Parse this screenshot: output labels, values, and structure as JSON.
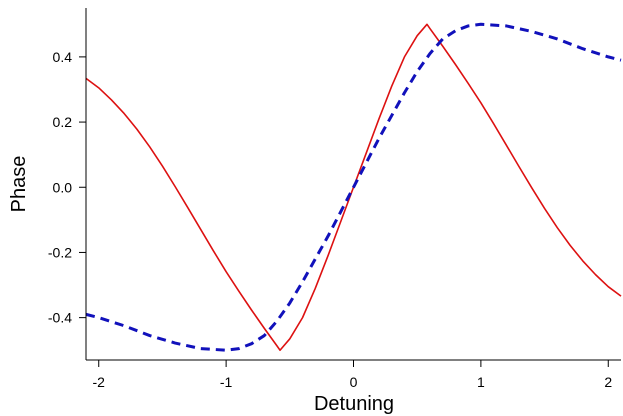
{
  "chart_data": {
    "type": "line",
    "title": "",
    "xlabel": "Detuning",
    "ylabel": "Phase",
    "xlim": [
      -2.1,
      2.1
    ],
    "ylim": [
      -0.53,
      0.55
    ],
    "x_ticks": [
      -2,
      -1,
      0,
      1,
      2
    ],
    "x_tick_labels": [
      "-2",
      "-1",
      "0",
      "1",
      "2"
    ],
    "y_ticks": [
      -0.4,
      -0.2,
      0.0,
      0.2,
      0.4
    ],
    "y_tick_labels": [
      "-0.4",
      "-0.2",
      "0.0",
      "0.2",
      "0.4"
    ],
    "grid": false,
    "legend": "none",
    "series": [
      {
        "color": "#dd1111",
        "dash": "solid",
        "x": [
          -2.1,
          -2.0,
          -1.9,
          -1.8,
          -1.7,
          -1.6,
          -1.5,
          -1.4,
          -1.3,
          -1.2,
          -1.1,
          -1.0,
          -0.9,
          -0.8,
          -0.7,
          -0.6,
          -0.577,
          -0.5,
          -0.4,
          -0.3,
          -0.2,
          -0.1,
          0.0,
          0.1,
          0.2,
          0.3,
          0.4,
          0.5,
          0.577,
          0.6,
          0.7,
          0.8,
          0.9,
          1.0,
          1.1,
          1.2,
          1.3,
          1.4,
          1.5,
          1.6,
          1.7,
          1.8,
          1.9,
          2.0,
          2.1
        ],
        "y": [
          0.334,
          0.305,
          0.268,
          0.226,
          0.178,
          0.124,
          0.065,
          0.002,
          -0.063,
          -0.129,
          -0.195,
          -0.259,
          -0.319,
          -0.377,
          -0.433,
          -0.487,
          -0.5,
          -0.465,
          -0.4,
          -0.31,
          -0.21,
          -0.105,
          0.0,
          0.105,
          0.21,
          0.31,
          0.4,
          0.465,
          0.5,
          0.487,
          0.433,
          0.377,
          0.319,
          0.259,
          0.195,
          0.129,
          0.063,
          -0.002,
          -0.065,
          -0.124,
          -0.178,
          -0.226,
          -0.268,
          -0.305,
          -0.334
        ]
      },
      {
        "color": "#1111bb",
        "dash": "dashed",
        "x": [
          -2.1,
          -2.0,
          -1.8,
          -1.6,
          -1.4,
          -1.2,
          -1.0,
          -0.9,
          -0.8,
          -0.7,
          -0.6,
          -0.5,
          -0.4,
          -0.3,
          -0.2,
          -0.1,
          0.0,
          0.1,
          0.2,
          0.3,
          0.4,
          0.5,
          0.6,
          0.7,
          0.8,
          0.9,
          1.0,
          1.2,
          1.4,
          1.6,
          1.8,
          2.0,
          2.1
        ],
        "y": [
          -0.39,
          -0.4,
          -0.425,
          -0.455,
          -0.478,
          -0.495,
          -0.5,
          -0.495,
          -0.48,
          -0.455,
          -0.41,
          -0.355,
          -0.29,
          -0.22,
          -0.15,
          -0.075,
          0.0,
          0.075,
          0.15,
          0.22,
          0.29,
          0.355,
          0.41,
          0.455,
          0.48,
          0.495,
          0.5,
          0.495,
          0.478,
          0.455,
          0.425,
          0.4,
          0.39
        ]
      }
    ]
  }
}
